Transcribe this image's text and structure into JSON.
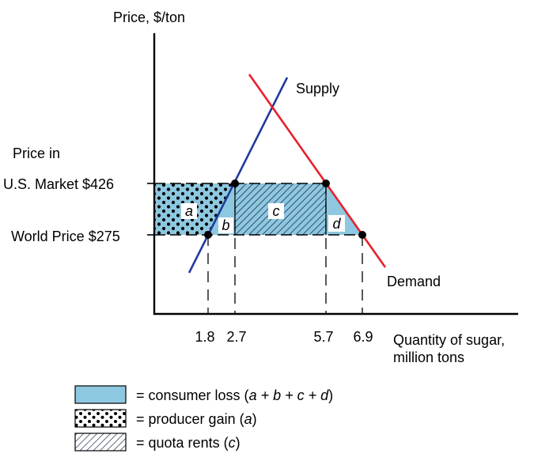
{
  "axes": {
    "y_label": "Price, $/ton",
    "x_label_line1": "Quantity of sugar,",
    "x_label_line2": "million tons"
  },
  "price_labels": {
    "heading": "Price in",
    "us_market": "U.S. Market $426",
    "world": "World Price $275"
  },
  "curves": {
    "supply": {
      "label": "Supply",
      "color": "#1f3c9a"
    },
    "demand": {
      "label": "Demand",
      "color": "#e8202a"
    }
  },
  "quantities": {
    "supply_world": "1.8",
    "supply_us": "2.7",
    "demand_us": "5.7",
    "demand_world": "6.9"
  },
  "areas": {
    "a": "a",
    "b": "b",
    "c": "c",
    "d": "d"
  },
  "colors": {
    "consumer_loss_fill": "#8ec8e0",
    "hatch_stroke": "#1a2a4a"
  },
  "legend": [
    {
      "prefix": "= consumer loss (",
      "expr": "a + b + c + d",
      "suffix": ")"
    },
    {
      "prefix": "= producer gain (",
      "expr": "a",
      "suffix": ")"
    },
    {
      "prefix": "= quota rents (",
      "expr": "c",
      "suffix": ")"
    }
  ]
}
